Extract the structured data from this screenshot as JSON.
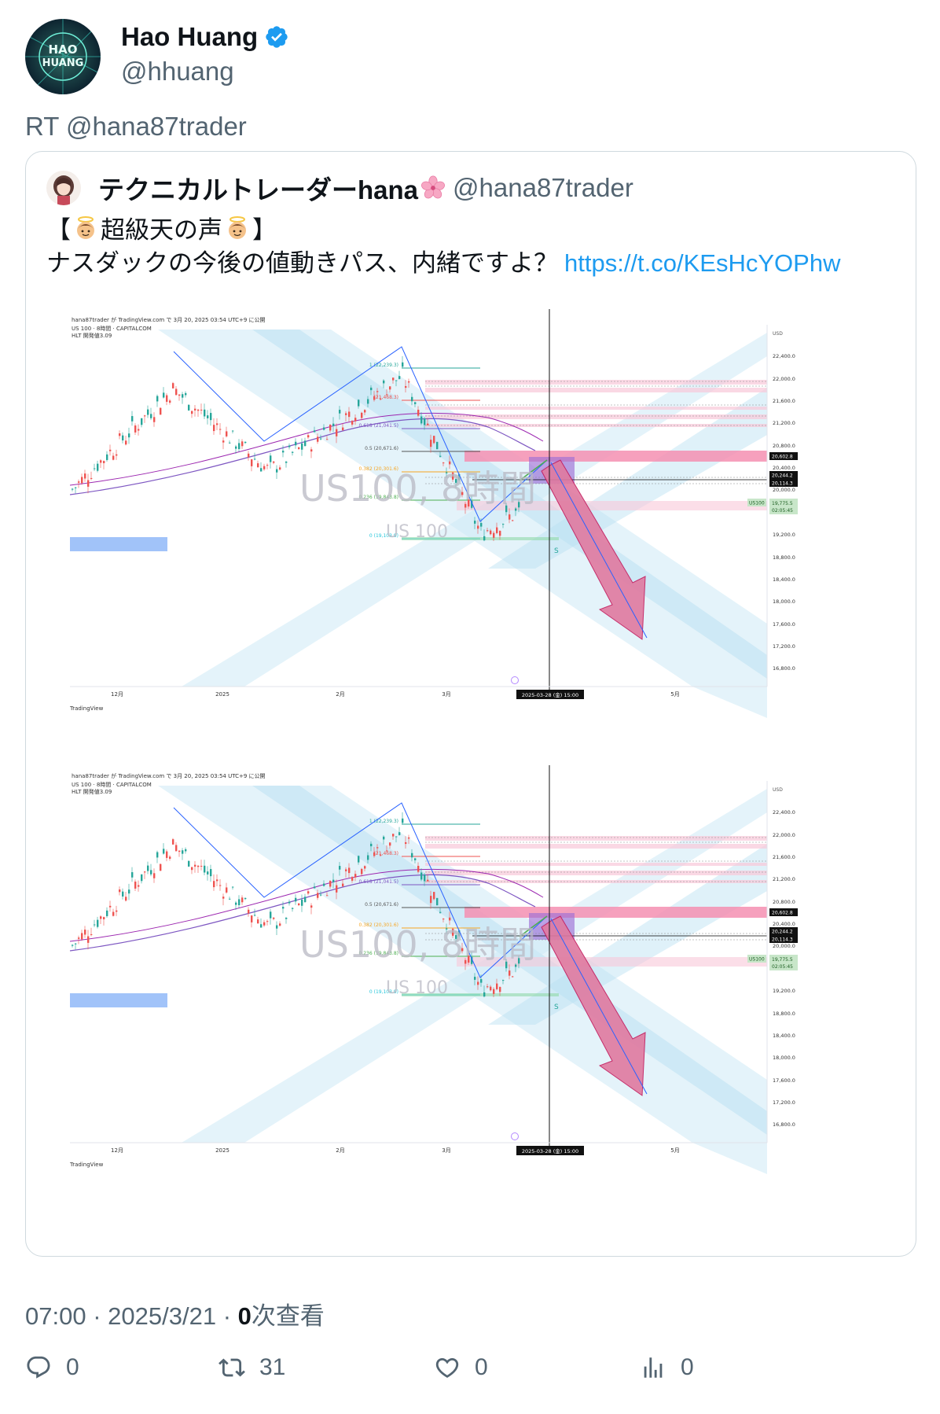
{
  "author": {
    "name": "Hao Huang",
    "handle": "@hhuang",
    "avatar_text": "HAO HUANG"
  },
  "retweet_text": "RT @hana87trader",
  "quote": {
    "name": "テクニカルトレーダーhana",
    "handle": "@hana87trader",
    "line1_open": "【",
    "line1_text": "超級天の声",
    "line1_close": "】",
    "line2_text": "ナスダックの今後の値動きパス、内緒ですよ？",
    "link": "https://t.co/KEsHcYOPhw"
  },
  "chart": {
    "header_line1": "hana87trader が TradingView.com で 3月 20, 2025 03:54 UTC+9 に公開",
    "header_line2": "US 100 · 8時間 · CAPITALCOM",
    "header_line3": "HLT 開発値3.09",
    "watermark1": "US100, 8時間",
    "watermark2": "US 100",
    "currency": "USD",
    "y_ticks": [
      "22,400.0",
      "22,000.0",
      "21,600.0",
      "21,200.0",
      "20,800.0",
      "20,400.0",
      "20,000.0",
      "19,200.0",
      "18,800.0",
      "18,400.0",
      "18,000.0",
      "17,600.0",
      "17,200.0",
      "16,800.0"
    ],
    "price_tags": [
      "20,602.8",
      "20,244.2",
      "20,114.3"
    ],
    "symbol_tag": "US100",
    "last_price": "19,775.5",
    "countdown": "02:05:45",
    "x_ticks": [
      "12月",
      "2025",
      "2月",
      "3月",
      "5月"
    ],
    "cursor_label": "2025-03-28 (金)   15:00",
    "fib_labels": [
      "1 (22,239.3)",
      "(21,468.3)",
      "0.618 (21,041.5)",
      "0.5 (20,671.6)",
      "0.382 (20,301.6)",
      "0.236 (19,843.8)",
      "0 (19,103.9)"
    ],
    "s_marker": "S",
    "brand": "TradingView",
    "colors": {
      "channel": "#cdeaf6",
      "up_candle": "#26a69a",
      "down_candle": "#ef5350",
      "arrow": "#e07aa0",
      "zone": "#f48fb1",
      "box": "#9c6fd6"
    }
  },
  "meta": {
    "time": "07:00",
    "date": "2025/3/21",
    "views_count": "0",
    "views_label": "次查看",
    "sep": "·"
  },
  "actions": {
    "reply_count": "0",
    "retweet_count": "31",
    "like_count": "0",
    "views_count": "0"
  }
}
